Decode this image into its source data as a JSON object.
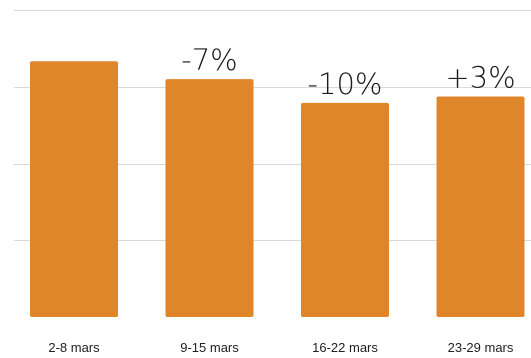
{
  "chart_data": {
    "type": "bar",
    "title": "",
    "xlabel": "",
    "ylabel": "",
    "categories": [
      "2-8 mars",
      "9-15 mars",
      "16-22 mars",
      "23-29 mars"
    ],
    "values": [
      100,
      93,
      83.7,
      86.2
    ],
    "data_labels": [
      "",
      "-7%",
      "-10%",
      "+3%"
    ],
    "ylim": [
      0,
      120
    ],
    "grid": true,
    "legend": "none",
    "bar_color": "#e0862a",
    "grid_color": "#d9d9d9"
  }
}
